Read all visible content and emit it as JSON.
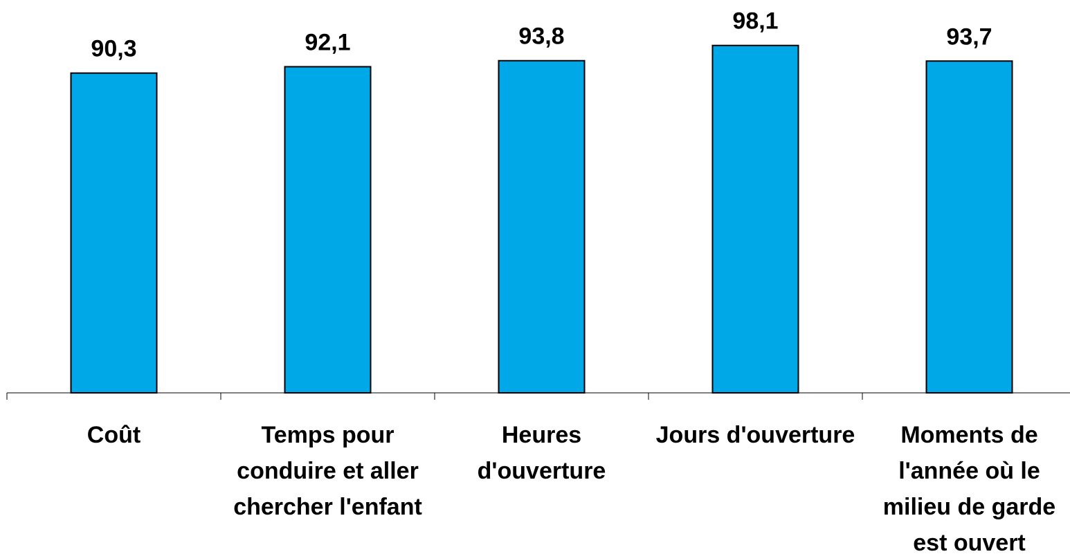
{
  "chart_data": {
    "type": "bar",
    "categories": [
      "Coût",
      "Temps pour conduire et aller chercher l'enfant",
      "Heures d'ouverture",
      "Jours d'ouverture",
      "Moments de l'année où le milieu de garde est ouvert"
    ],
    "values": [
      90.3,
      92.1,
      93.8,
      98.1,
      93.7
    ],
    "value_labels": [
      "90,3",
      "92,1",
      "93,8",
      "98,1",
      "93,7"
    ],
    "color": "#00a8e8",
    "ylim": [
      0,
      100
    ]
  }
}
